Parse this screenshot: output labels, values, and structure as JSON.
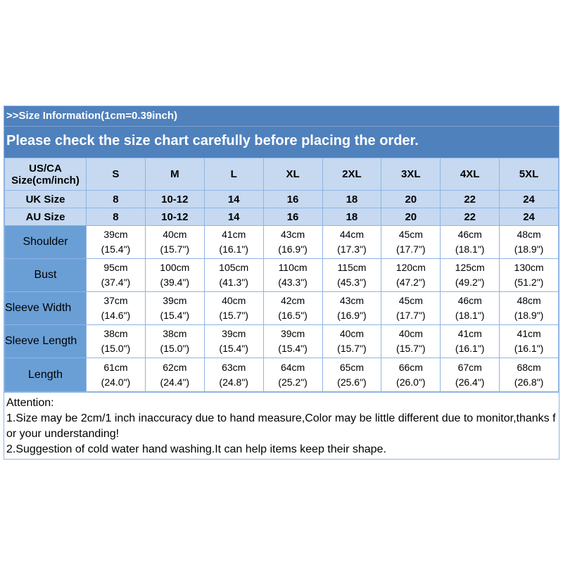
{
  "header": {
    "info": ">>Size Information(1cm=0.39inch)",
    "notice": "Please check the size chart carefully before placing the order."
  },
  "table": {
    "size_rows": [
      {
        "label_lines": [
          "US/CA",
          "Size(cm/inch)"
        ],
        "values": [
          "S",
          "M",
          "L",
          "XL",
          "2XL",
          "3XL",
          "4XL",
          "5XL"
        ]
      },
      {
        "label_lines": [
          "UK Size"
        ],
        "values": [
          "8",
          "10-12",
          "14",
          "16",
          "18",
          "20",
          "22",
          "24"
        ]
      },
      {
        "label_lines": [
          "AU Size"
        ],
        "values": [
          "8",
          "10-12",
          "14",
          "16",
          "18",
          "20",
          "22",
          "24"
        ]
      }
    ],
    "measure_rows": [
      {
        "label": "Shoulder",
        "values": [
          {
            "cm": "39cm",
            "inch": "(15.4\")"
          },
          {
            "cm": "40cm",
            "inch": "(15.7\")"
          },
          {
            "cm": "41cm",
            "inch": "(16.1\")"
          },
          {
            "cm": "43cm",
            "inch": "(16.9\")"
          },
          {
            "cm": "44cm",
            "inch": "(17.3\")"
          },
          {
            "cm": "45cm",
            "inch": "(17.7\")"
          },
          {
            "cm": "46cm",
            "inch": "(18.1\")"
          },
          {
            "cm": "48cm",
            "inch": "(18.9\")"
          }
        ]
      },
      {
        "label": "Bust",
        "values": [
          {
            "cm": "95cm",
            "inch": "(37.4\")"
          },
          {
            "cm": "100cm",
            "inch": "(39.4\")"
          },
          {
            "cm": "105cm",
            "inch": "(41.3\")"
          },
          {
            "cm": "110cm",
            "inch": "(43.3\")"
          },
          {
            "cm": "115cm",
            "inch": "(45.3\")"
          },
          {
            "cm": "120cm",
            "inch": "(47.2\")"
          },
          {
            "cm": "125cm",
            "inch": "(49.2\")"
          },
          {
            "cm": "130cm",
            "inch": "(51.2\")"
          }
        ]
      },
      {
        "label": "Sleeve Width",
        "values": [
          {
            "cm": "37cm",
            "inch": "(14.6\")"
          },
          {
            "cm": "39cm",
            "inch": "(15.4\")"
          },
          {
            "cm": "40cm",
            "inch": "(15.7\")"
          },
          {
            "cm": "42cm",
            "inch": "(16.5\")"
          },
          {
            "cm": "43cm",
            "inch": "(16.9\")"
          },
          {
            "cm": "45cm",
            "inch": "(17.7\")"
          },
          {
            "cm": "46cm",
            "inch": "(18.1\")"
          },
          {
            "cm": "48cm",
            "inch": "(18.9\")"
          }
        ]
      },
      {
        "label": "Sleeve Length",
        "values": [
          {
            "cm": "38cm",
            "inch": "(15.0\")"
          },
          {
            "cm": "38cm",
            "inch": "(15.0\")"
          },
          {
            "cm": "39cm",
            "inch": "(15.4\")"
          },
          {
            "cm": "39cm",
            "inch": "(15.4\")"
          },
          {
            "cm": "40cm",
            "inch": "(15.7\")"
          },
          {
            "cm": "40cm",
            "inch": "(15.7\")"
          },
          {
            "cm": "41cm",
            "inch": "(16.1\")"
          },
          {
            "cm": "41cm",
            "inch": "(16.1\")"
          }
        ]
      },
      {
        "label": "Length",
        "values": [
          {
            "cm": "61cm",
            "inch": "(24.0\")"
          },
          {
            "cm": "62cm",
            "inch": "(24.4\")"
          },
          {
            "cm": "63cm",
            "inch": "(24.8\")"
          },
          {
            "cm": "64cm",
            "inch": "(25.2\")"
          },
          {
            "cm": "65cm",
            "inch": "(25.6\")"
          },
          {
            "cm": "66cm",
            "inch": "(26.0\")"
          },
          {
            "cm": "67cm",
            "inch": "(26.4\")"
          },
          {
            "cm": "68cm",
            "inch": "(26.8\")"
          }
        ]
      }
    ]
  },
  "notes": {
    "heading": "Attention:",
    "items": [
      "1.Size may be 2cm/1 inch inaccuracy due to hand measure,Color may be little different due to monitor,thanks for your understanding!",
      "2.Suggestion of cold water hand washing.It can help items keep their shape."
    ]
  }
}
